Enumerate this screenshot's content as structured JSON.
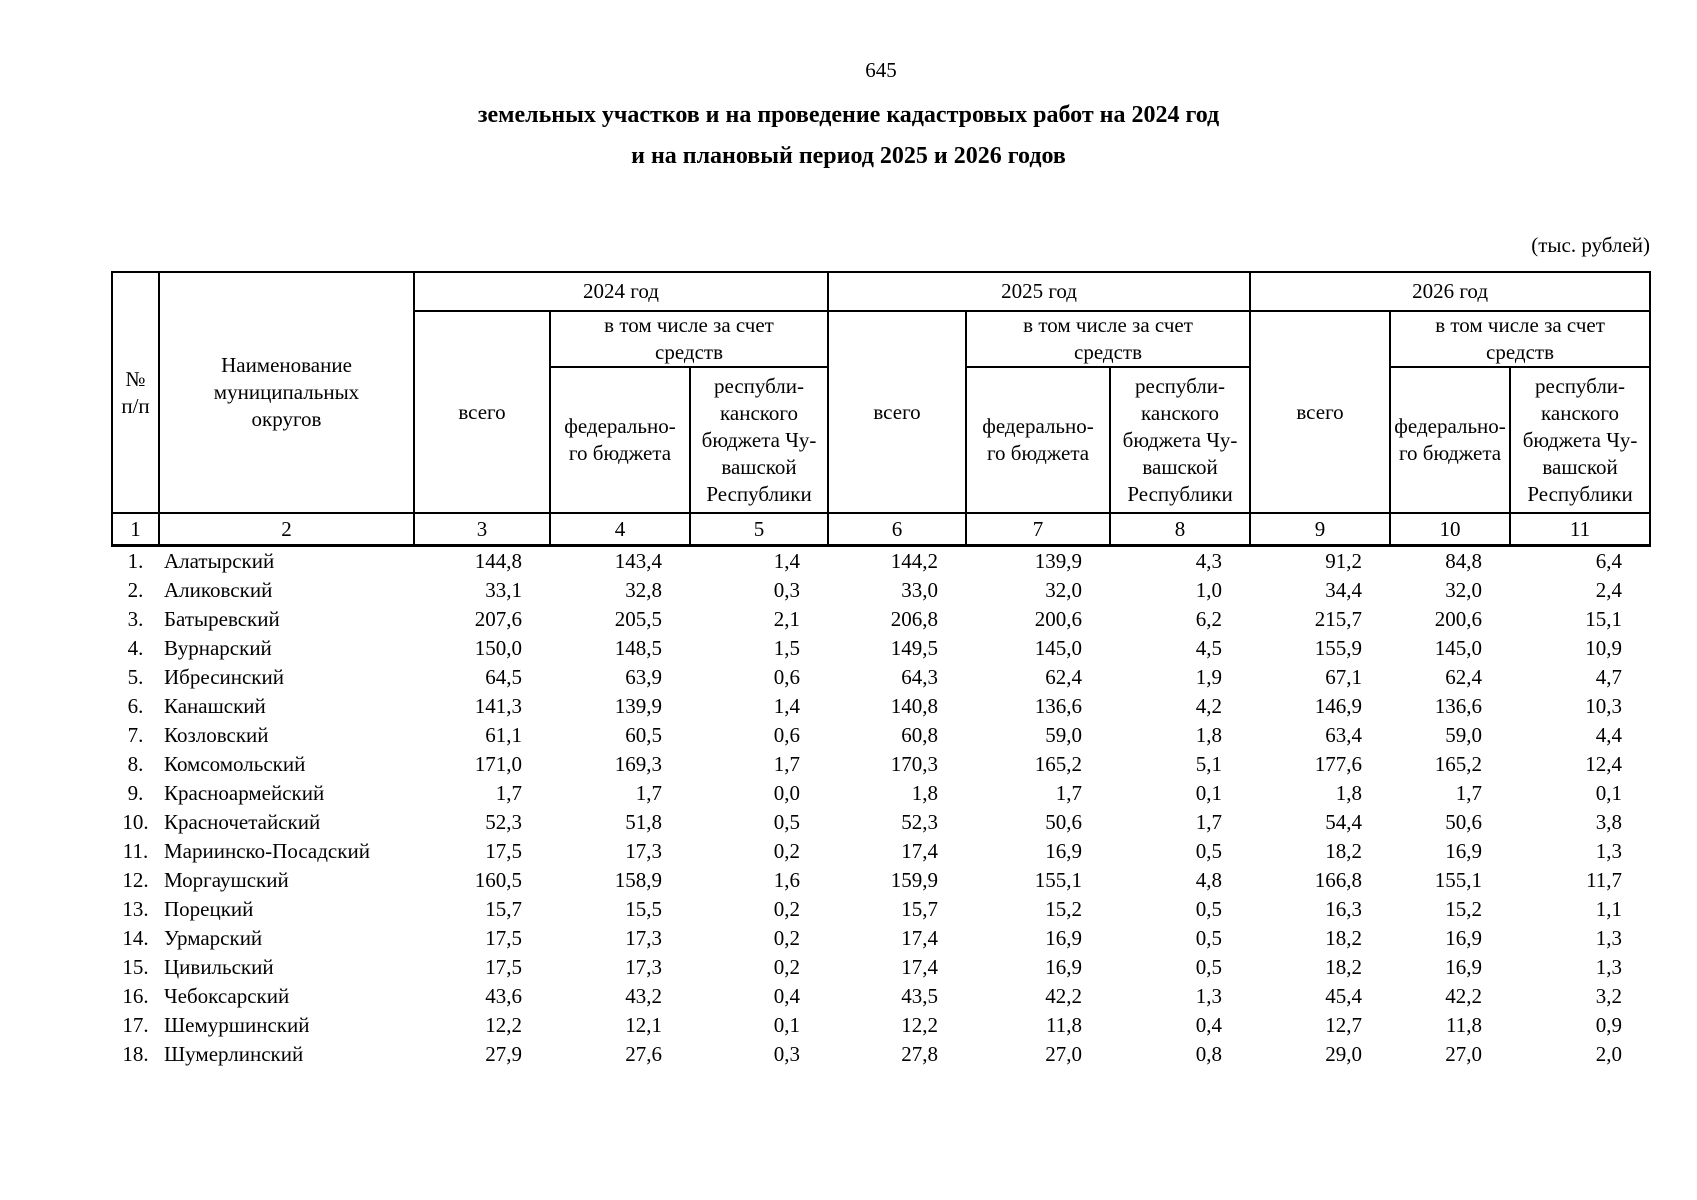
{
  "page": {
    "number": "645"
  },
  "title": {
    "line1": "земельных участков и на проведение кадастровых работ на 2024 год",
    "line2": "и на плановый период 2025 и 2026 годов"
  },
  "unit_note": "(тыс. рублей)",
  "table": {
    "header": {
      "npp": "№\nп/п",
      "name": "Наименование\nмуниципальных\nокругов",
      "years": [
        "2024 год",
        "2025 год",
        "2026 год"
      ],
      "vsego": "всего",
      "incl": "в том числе за счет\nсредств",
      "fed": "федерально-\nго бюджета",
      "rep": "республи-\nканского\nбюджета Чу-\nвашской\nРеспублики"
    },
    "column_numbers": [
      "1",
      "2",
      "3",
      "4",
      "5",
      "6",
      "7",
      "8",
      "9",
      "10",
      "11"
    ],
    "rows": [
      {
        "num": "1.",
        "name": "Алатырский",
        "values": [
          "144,8",
          "143,4",
          "1,4",
          "144,2",
          "139,9",
          "4,3",
          "91,2",
          "84,8",
          "6,4"
        ]
      },
      {
        "num": "2.",
        "name": "Аликовский",
        "values": [
          "33,1",
          "32,8",
          "0,3",
          "33,0",
          "32,0",
          "1,0",
          "34,4",
          "32,0",
          "2,4"
        ]
      },
      {
        "num": "3.",
        "name": "Батыревский",
        "values": [
          "207,6",
          "205,5",
          "2,1",
          "206,8",
          "200,6",
          "6,2",
          "215,7",
          "200,6",
          "15,1"
        ]
      },
      {
        "num": "4.",
        "name": "Вурнарский",
        "values": [
          "150,0",
          "148,5",
          "1,5",
          "149,5",
          "145,0",
          "4,5",
          "155,9",
          "145,0",
          "10,9"
        ]
      },
      {
        "num": "5.",
        "name": "Ибресинский",
        "values": [
          "64,5",
          "63,9",
          "0,6",
          "64,3",
          "62,4",
          "1,9",
          "67,1",
          "62,4",
          "4,7"
        ]
      },
      {
        "num": "6.",
        "name": "Канашский",
        "values": [
          "141,3",
          "139,9",
          "1,4",
          "140,8",
          "136,6",
          "4,2",
          "146,9",
          "136,6",
          "10,3"
        ]
      },
      {
        "num": "7.",
        "name": "Козловский",
        "values": [
          "61,1",
          "60,5",
          "0,6",
          "60,8",
          "59,0",
          "1,8",
          "63,4",
          "59,0",
          "4,4"
        ]
      },
      {
        "num": "8.",
        "name": "Комсомольский",
        "values": [
          "171,0",
          "169,3",
          "1,7",
          "170,3",
          "165,2",
          "5,1",
          "177,6",
          "165,2",
          "12,4"
        ]
      },
      {
        "num": "9.",
        "name": "Красноармейский",
        "values": [
          "1,7",
          "1,7",
          "0,0",
          "1,8",
          "1,7",
          "0,1",
          "1,8",
          "1,7",
          "0,1"
        ]
      },
      {
        "num": "10.",
        "name": "Красночетайский",
        "values": [
          "52,3",
          "51,8",
          "0,5",
          "52,3",
          "50,6",
          "1,7",
          "54,4",
          "50,6",
          "3,8"
        ]
      },
      {
        "num": "11.",
        "name": "Мариинско-Посадский",
        "values": [
          "17,5",
          "17,3",
          "0,2",
          "17,4",
          "16,9",
          "0,5",
          "18,2",
          "16,9",
          "1,3"
        ]
      },
      {
        "num": "12.",
        "name": "Моргаушский",
        "values": [
          "160,5",
          "158,9",
          "1,6",
          "159,9",
          "155,1",
          "4,8",
          "166,8",
          "155,1",
          "11,7"
        ]
      },
      {
        "num": "13.",
        "name": "Порецкий",
        "values": [
          "15,7",
          "15,5",
          "0,2",
          "15,7",
          "15,2",
          "0,5",
          "16,3",
          "15,2",
          "1,1"
        ]
      },
      {
        "num": "14.",
        "name": "Урмарский",
        "values": [
          "17,5",
          "17,3",
          "0,2",
          "17,4",
          "16,9",
          "0,5",
          "18,2",
          "16,9",
          "1,3"
        ]
      },
      {
        "num": "15.",
        "name": "Цивильский",
        "values": [
          "17,5",
          "17,3",
          "0,2",
          "17,4",
          "16,9",
          "0,5",
          "18,2",
          "16,9",
          "1,3"
        ]
      },
      {
        "num": "16.",
        "name": "Чебоксарский",
        "values": [
          "43,6",
          "43,2",
          "0,4",
          "43,5",
          "42,2",
          "1,3",
          "45,4",
          "42,2",
          "3,2"
        ]
      },
      {
        "num": "17.",
        "name": "Шемуршинский",
        "values": [
          "12,2",
          "12,1",
          "0,1",
          "12,2",
          "11,8",
          "0,4",
          "12,7",
          "11,8",
          "0,9"
        ]
      },
      {
        "num": "18.",
        "name": "Шумерлинский",
        "values": [
          "27,9",
          "27,6",
          "0,3",
          "27,8",
          "27,0",
          "0,8",
          "29,0",
          "27,0",
          "2,0"
        ]
      }
    ]
  }
}
